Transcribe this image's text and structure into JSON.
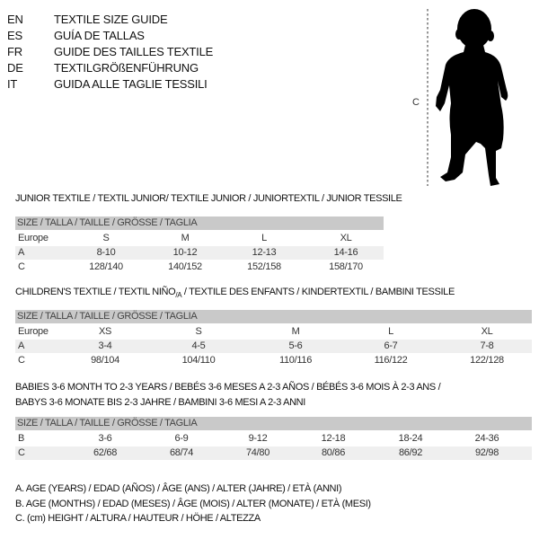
{
  "languages": [
    {
      "code": "EN",
      "name": "TEXTILE SIZE GUIDE"
    },
    {
      "code": "ES",
      "name": "GUÍA DE TALLAS"
    },
    {
      "code": "FR",
      "name": "GUIDE DES TAILLES TEXTILE"
    },
    {
      "code": "DE",
      "name": "TEXTILGRÖßENFÜHRUNG"
    },
    {
      "code": "IT",
      "name": "GUIDA ALLE TAGLIE TESSILI"
    }
  ],
  "figure": {
    "measure_label": "C"
  },
  "size_header": "SIZE / TALLA / TAILLE / GRÖSSE / TAGLIA",
  "junior": {
    "title": "JUNIOR TEXTILE / TEXTIL JUNIOR/ TEXTILE JUNIOR / JUNIORTEXTIL / JUNIOR TESSILE",
    "rows": [
      {
        "label": "Europe",
        "values": [
          "S",
          "M",
          "L",
          "XL"
        ]
      },
      {
        "label": "A",
        "values": [
          "8-10",
          "10-12",
          "12-13",
          "14-16"
        ]
      },
      {
        "label": "C",
        "values": [
          "128/140",
          "140/152",
          "152/158",
          "158/170"
        ]
      }
    ]
  },
  "children": {
    "title_pre": "CHILDREN'S TEXTILE / TEXTIL NIÑO",
    "title_sub": "/A",
    "title_post": " / TEXTILE DES ENFANTS / KINDERTEXTIL / BAMBINI TESSILE",
    "rows": [
      {
        "label": "Europe",
        "values": [
          "XS",
          "S",
          "M",
          "L",
          "XL"
        ]
      },
      {
        "label": "A",
        "values": [
          "3-4",
          "4-5",
          "5-6",
          "6-7",
          "7-8"
        ]
      },
      {
        "label": "C",
        "values": [
          "98/104",
          "104/110",
          "110/116",
          "116/122",
          "122/128"
        ]
      }
    ]
  },
  "babies": {
    "title_line1": "BABIES 3-6 MONTH TO 2-3 YEARS / BEBÉS 3-6 MESES A 2-3 AÑOS / BÉBÉS 3-6 MOIS À 2-3 ANS /",
    "title_line2": "BABYS 3-6 MONATE BIS 2-3 JAHRE / BAMBINI 3-6 MESI A 2-3 ANNI",
    "rows": [
      {
        "label": "B",
        "values": [
          "3-6",
          "6-9",
          "9-12",
          "12-18",
          "18-24",
          "24-36"
        ]
      },
      {
        "label": "C",
        "values": [
          "62/68",
          "68/74",
          "74/80",
          "80/86",
          "86/92",
          "92/98"
        ]
      }
    ]
  },
  "legend": [
    "A. AGE (YEARS) / EDAD (AÑOS) / ÂGE (ANS) / ALTER (JAHRE) / ETÀ (ANNI)",
    "B. AGE (MONTHS) / EDAD (MESES) / ÂGE (MOIS) / ALTER (MONATE) / ETÀ (MESI)",
    "C. (cm) HEIGHT / ALTURA / HAUTEUR / HÖHE / ALTEZZA"
  ]
}
